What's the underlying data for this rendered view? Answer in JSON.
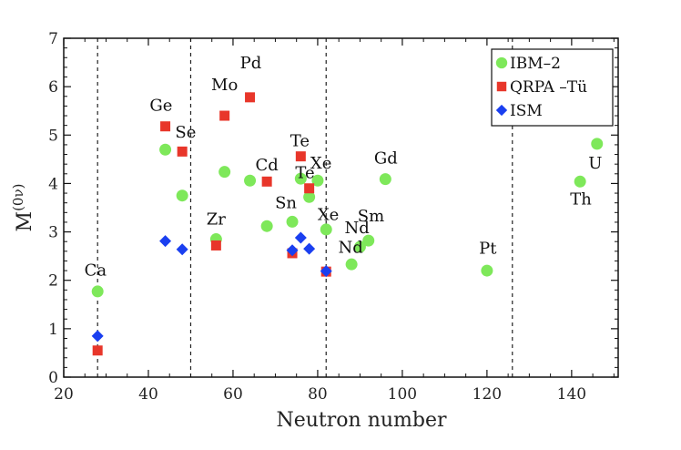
{
  "chart_data": {
    "type": "scatter",
    "xlabel": "Neutron number",
    "ylabel": "M(0ν)",
    "xlim": [
      20,
      151
    ],
    "ylim": [
      0,
      7
    ],
    "xticks": [
      20,
      40,
      60,
      80,
      100,
      120,
      140
    ],
    "yticks": [
      0,
      1,
      2,
      3,
      4,
      5,
      6,
      7
    ],
    "grid": false,
    "legend_position": "top-right",
    "magic_numbers": [
      28,
      50,
      82,
      126
    ],
    "series": [
      {
        "name": "IBM–2",
        "marker": "circle",
        "color": "#7ee85a",
        "points": [
          {
            "x": 28,
            "y": 1.77
          },
          {
            "x": 44,
            "y": 4.7
          },
          {
            "x": 48,
            "y": 3.75
          },
          {
            "x": 56,
            "y": 2.85
          },
          {
            "x": 58,
            "y": 4.24
          },
          {
            "x": 64,
            "y": 4.06
          },
          {
            "x": 68,
            "y": 3.12
          },
          {
            "x": 74,
            "y": 3.21
          },
          {
            "x": 76,
            "y": 4.1
          },
          {
            "x": 78,
            "y": 3.72
          },
          {
            "x": 80,
            "y": 4.06
          },
          {
            "x": 82,
            "y": 3.05
          },
          {
            "x": 88,
            "y": 2.33
          },
          {
            "x": 90,
            "y": 2.69
          },
          {
            "x": 92,
            "y": 2.82
          },
          {
            "x": 96,
            "y": 4.09
          },
          {
            "x": 120,
            "y": 2.2
          },
          {
            "x": 142,
            "y": 4.04
          },
          {
            "x": 146,
            "y": 4.82
          }
        ]
      },
      {
        "name": "QRPA –Tü",
        "marker": "square",
        "color": "#e8362a",
        "points": [
          {
            "x": 28,
            "y": 0.55
          },
          {
            "x": 44,
            "y": 5.18
          },
          {
            "x": 48,
            "y": 4.66
          },
          {
            "x": 56,
            "y": 2.72
          },
          {
            "x": 58,
            "y": 5.4
          },
          {
            "x": 64,
            "y": 5.78
          },
          {
            "x": 68,
            "y": 4.04
          },
          {
            "x": 74,
            "y": 2.56
          },
          {
            "x": 76,
            "y": 4.56
          },
          {
            "x": 78,
            "y": 3.9
          },
          {
            "x": 82,
            "y": 2.18
          }
        ]
      },
      {
        "name": "ISM",
        "marker": "diamond",
        "color": "#1a3ff0",
        "points": [
          {
            "x": 28,
            "y": 0.85
          },
          {
            "x": 44,
            "y": 2.81
          },
          {
            "x": 48,
            "y": 2.64
          },
          {
            "x": 74,
            "y": 2.62
          },
          {
            "x": 76,
            "y": 2.88
          },
          {
            "x": 78,
            "y": 2.65
          },
          {
            "x": 82,
            "y": 2.19
          }
        ]
      }
    ],
    "annotations": [
      {
        "text": "Ca",
        "x": 27.5,
        "y": 2.1
      },
      {
        "text": "Ge",
        "x": 43.0,
        "y": 5.5
      },
      {
        "text": "Se",
        "x": 48.8,
        "y": 4.95
      },
      {
        "text": "Mo",
        "x": 58.0,
        "y": 5.93
      },
      {
        "text": "Pd",
        "x": 64.2,
        "y": 6.38
      },
      {
        "text": "Zr",
        "x": 56.0,
        "y": 3.15
      },
      {
        "text": "Cd",
        "x": 68.0,
        "y": 4.27
      },
      {
        "text": "Te",
        "x": 75.8,
        "y": 4.77
      },
      {
        "text": "Xe",
        "x": 80.8,
        "y": 4.31
      },
      {
        "text": "Te",
        "x": 77.0,
        "y": 4.11
      },
      {
        "text": "Sn",
        "x": 72.5,
        "y": 3.49
      },
      {
        "text": "Xe",
        "x": 82.5,
        "y": 3.25
      },
      {
        "text": "Nd",
        "x": 89.3,
        "y": 2.97
      },
      {
        "text": "Sm",
        "x": 92.6,
        "y": 3.22
      },
      {
        "text": "Nd",
        "x": 87.8,
        "y": 2.57
      },
      {
        "text": "Gd",
        "x": 96.1,
        "y": 4.41
      },
      {
        "text": "Pt",
        "x": 120.2,
        "y": 2.55
      },
      {
        "text": "U",
        "x": 145.6,
        "y": 4.31
      },
      {
        "text": "Th",
        "x": 142.2,
        "y": 3.57
      }
    ]
  }
}
